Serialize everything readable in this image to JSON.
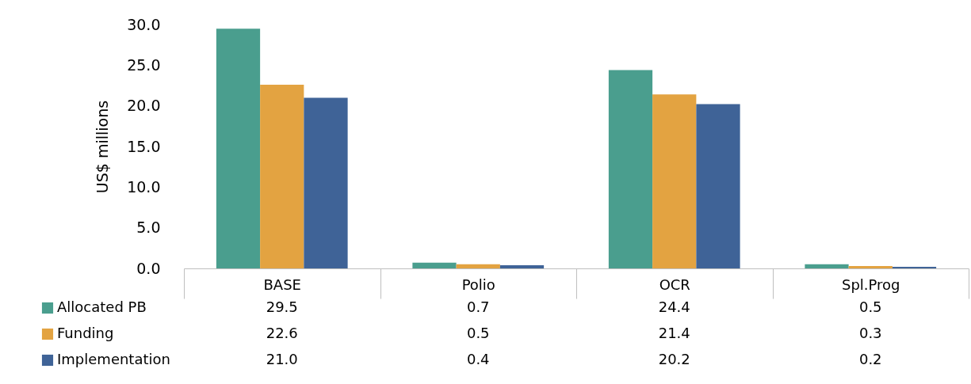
{
  "chart_data": {
    "type": "bar",
    "ylabel": "US$ millions",
    "categories": [
      "BASE",
      "Polio",
      "OCR",
      "Spl.Prog"
    ],
    "series": [
      {
        "name": "Allocated PB",
        "color": "#4a9e8e",
        "values": [
          29.5,
          0.7,
          24.4,
          0.5
        ],
        "value_labels": [
          "29.5",
          "0.7",
          "24.4",
          "0.5"
        ]
      },
      {
        "name": "Funding",
        "color": "#e3a341",
        "values": [
          22.6,
          0.5,
          21.4,
          0.3
        ],
        "value_labels": [
          "22.6",
          "0.5",
          "21.4",
          "0.3"
        ]
      },
      {
        "name": "Implementation",
        "color": "#3f6397",
        "values": [
          21.0,
          0.4,
          20.2,
          0.2
        ],
        "value_labels": [
          "21.0",
          "0.4",
          "20.2",
          "0.2"
        ]
      }
    ],
    "ylim": [
      0,
      30
    ],
    "yticks": [
      {
        "value": 0,
        "label": "0.0"
      },
      {
        "value": 5,
        "label": "5.0"
      },
      {
        "value": 10,
        "label": "10.0"
      },
      {
        "value": 15,
        "label": "15.0"
      },
      {
        "value": 20,
        "label": "20.0"
      },
      {
        "value": 25,
        "label": "25.0"
      },
      {
        "value": 30,
        "label": "30.0"
      }
    ],
    "legend": "bottom left",
    "grid": false
  }
}
